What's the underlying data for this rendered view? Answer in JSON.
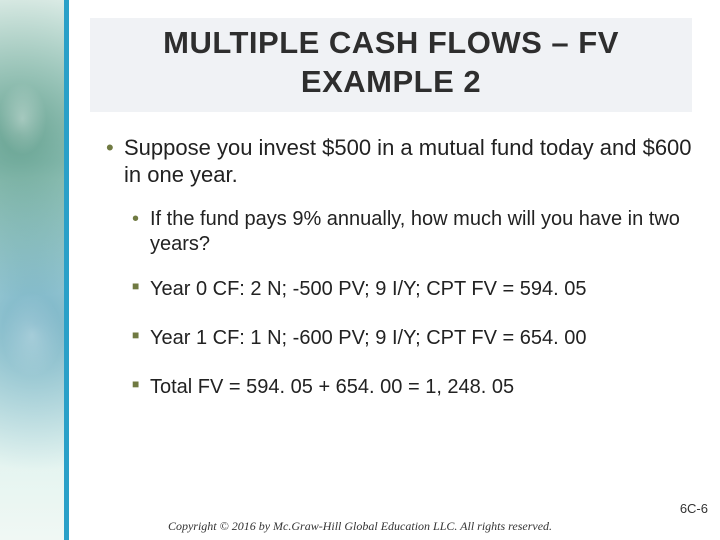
{
  "title": "MULTIPLE CASH FLOWS – FV EXAMPLE 2",
  "bullets": {
    "p1": "Suppose you invest $500 in a mutual fund today and $600 in one year.",
    "p2": "If the fund pays 9% annually, how much will you have in two years?",
    "p3": "Year 0 CF: 2 N; -500 PV; 9 I/Y; CPT FV = 594. 05",
    "p4": "Year 1 CF: 1 N; -600 PV; 9 I/Y; CPT FV = 654. 00",
    "p5": "Total FV = 594. 05 + 654. 00 = 1, 248. 05"
  },
  "copyright": "Copyright © 2016 by Mc.Graw-Hill Global Education LLC. All rights reserved.",
  "slide_number": "6C-6",
  "colors": {
    "accent_stripe": "#2aa0c8",
    "bullet_color": "#707a42",
    "title_bg": "#f0f2f5"
  }
}
